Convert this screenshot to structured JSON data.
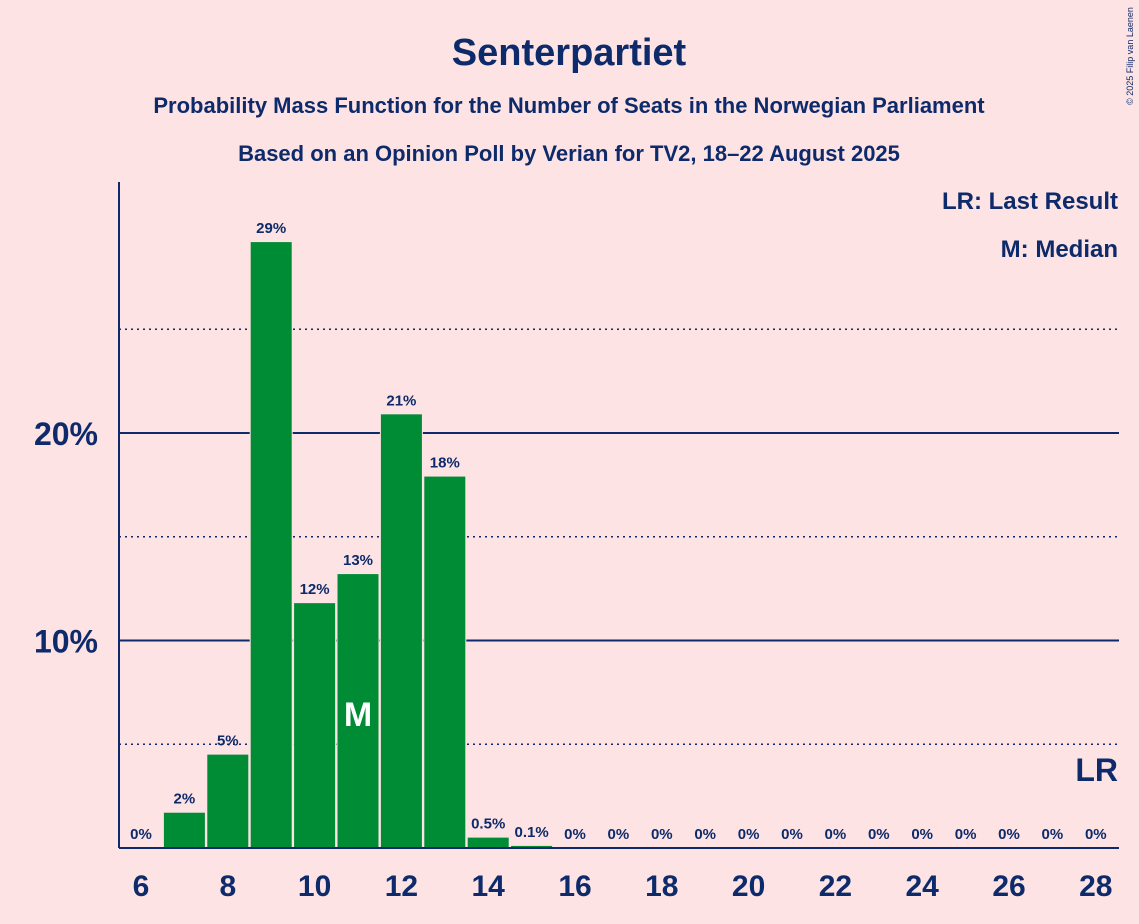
{
  "chart_data": {
    "type": "bar",
    "title": "Senterpartiet",
    "subtitle_line1": "Probability Mass Function for the Number of Seats in the Norwegian Parliament",
    "subtitle_line2": "Based on an Opinion Poll by Verian for TV2, 18–22 August 2025",
    "copyright": "© 2025 Filip van Laenen",
    "legend": {
      "last_result": "LR: Last Result",
      "median": "M: Median",
      "placement": "top-right"
    },
    "xlabel": "",
    "ylabel": "",
    "ylim": [
      0,
      32
    ],
    "major_gridlines": [
      10,
      20
    ],
    "minor_gridlines": [
      5,
      15,
      25
    ],
    "y_ticks": [
      {
        "value": 10,
        "label": "10%"
      },
      {
        "value": 20,
        "label": "20%"
      }
    ],
    "x_ticks": [
      6,
      8,
      10,
      12,
      14,
      16,
      18,
      20,
      22,
      24,
      26,
      28
    ],
    "x_tick_labels": [
      "6",
      "8",
      "10",
      "12",
      "14",
      "16",
      "18",
      "20",
      "22",
      "24",
      "26",
      "28"
    ],
    "categories": [
      6,
      7,
      8,
      9,
      10,
      11,
      12,
      13,
      14,
      15,
      16,
      17,
      18,
      19,
      20,
      21,
      22,
      23,
      24,
      25,
      26,
      27,
      28
    ],
    "values": [
      0,
      1.7,
      4.5,
      29.2,
      11.8,
      13.2,
      20.9,
      17.9,
      0.5,
      0.1,
      0,
      0,
      0,
      0,
      0,
      0,
      0,
      0,
      0,
      0,
      0,
      0,
      0
    ],
    "value_labels": [
      "0%",
      "2%",
      "5%",
      "29%",
      "12%",
      "13%",
      "21%",
      "18%",
      "0.5%",
      "0.1%",
      "0%",
      "0%",
      "0%",
      "0%",
      "0%",
      "0%",
      "0%",
      "0%",
      "0%",
      "0%",
      "0%",
      "0%",
      "0%"
    ],
    "median_seat": 11,
    "median_marker": "M",
    "last_result_seat": 28,
    "last_result_marker": "LR",
    "bar_color": "#008c35",
    "text_color": "#0d2a6b",
    "background_color": "#fde3e3"
  }
}
